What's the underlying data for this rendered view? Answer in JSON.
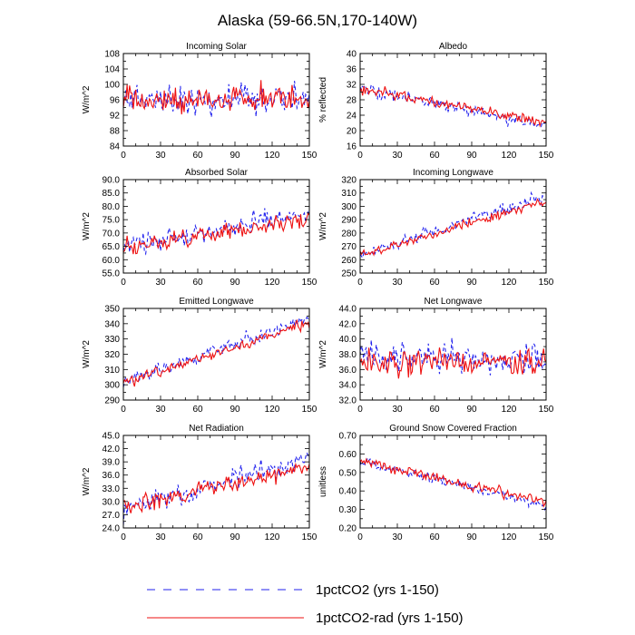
{
  "figure": {
    "title": "Alaska (59-66.5N,170-140W)"
  },
  "colors": {
    "series_1pctCO2": "#2222ee",
    "series_1pctCO2_rad": "#ee1111",
    "axis": "#000000"
  },
  "legend": [
    {
      "label": "1pctCO2 (yrs 1-150)",
      "color": "#2222ee",
      "style": "dashed"
    },
    {
      "label": "1pctCO2-rad (yrs 1-150)",
      "color": "#ee1111",
      "style": "solid"
    }
  ],
  "chart_data": [
    {
      "type": "line",
      "title": "Incoming Solar",
      "ylabel": "W/m^2",
      "xlim": [
        0,
        150
      ],
      "ylim": [
        84,
        108
      ],
      "xticks": [
        0,
        30,
        60,
        90,
        120,
        150
      ],
      "yticks": [
        84,
        88,
        92,
        96,
        100,
        104,
        108
      ],
      "ytick_labels": [
        "84",
        "88",
        "92",
        "96",
        "100",
        "104",
        "108"
      ],
      "series": [
        {
          "key": "1pctCO2",
          "mean_start": 96,
          "mean_end": 96,
          "noise": 3.2,
          "seed": 11
        },
        {
          "key": "1pctCO2-rad",
          "mean_start": 96,
          "mean_end": 96,
          "noise": 3.0,
          "seed": 12
        }
      ]
    },
    {
      "type": "line",
      "title": "Albedo",
      "ylabel": "% reflected",
      "xlim": [
        0,
        150
      ],
      "ylim": [
        16,
        40
      ],
      "xticks": [
        0,
        30,
        60,
        90,
        120,
        150
      ],
      "yticks": [
        16,
        20,
        24,
        28,
        32,
        36,
        40
      ],
      "ytick_labels": [
        "16",
        "20",
        "24",
        "28",
        "32",
        "36",
        "40"
      ],
      "series": [
        {
          "key": "1pctCO2",
          "mean_start": 31,
          "mean_end": 21,
          "noise": 1.3,
          "seed": 21
        },
        {
          "key": "1pctCO2-rad",
          "mean_start": 31,
          "mean_end": 22,
          "noise": 1.1,
          "seed": 22
        }
      ]
    },
    {
      "type": "line",
      "title": "Absorbed Solar",
      "ylabel": "W/m^2",
      "xlim": [
        0,
        150
      ],
      "ylim": [
        55,
        90
      ],
      "xticks": [
        0,
        30,
        60,
        90,
        120,
        150
      ],
      "yticks": [
        55,
        60,
        65,
        70,
        75,
        80,
        85,
        90
      ],
      "ytick_labels": [
        "55.0",
        "60.0",
        "65.0",
        "70.0",
        "75.0",
        "80.0",
        "85.0",
        "90.0"
      ],
      "series": [
        {
          "key": "1pctCO2",
          "mean_start": 65,
          "mean_end": 77,
          "noise": 3.0,
          "seed": 31
        },
        {
          "key": "1pctCO2-rad",
          "mean_start": 65,
          "mean_end": 75,
          "noise": 2.6,
          "seed": 32
        }
      ]
    },
    {
      "type": "line",
      "title": "Incoming Longwave",
      "ylabel": "W/m^2",
      "xlim": [
        0,
        150
      ],
      "ylim": [
        250,
        320
      ],
      "xticks": [
        0,
        30,
        60,
        90,
        120,
        150
      ],
      "yticks": [
        250,
        260,
        270,
        280,
        290,
        300,
        310,
        320
      ],
      "ytick_labels": [
        "250",
        "260",
        "270",
        "280",
        "290",
        "300",
        "310",
        "320"
      ],
      "series": [
        {
          "key": "1pctCO2",
          "mean_start": 263,
          "mean_end": 308,
          "noise": 3.5,
          "seed": 41
        },
        {
          "key": "1pctCO2-rad",
          "mean_start": 263,
          "mean_end": 304,
          "noise": 3.0,
          "seed": 42
        }
      ]
    },
    {
      "type": "line",
      "title": "Emitted Longwave",
      "ylabel": "W/m^2",
      "xlim": [
        0,
        150
      ],
      "ylim": [
        290,
        350
      ],
      "xticks": [
        0,
        30,
        60,
        90,
        120,
        150
      ],
      "yticks": [
        290,
        300,
        310,
        320,
        330,
        340,
        350
      ],
      "ytick_labels": [
        "290",
        "300",
        "310",
        "320",
        "330",
        "340",
        "350"
      ],
      "series": [
        {
          "key": "1pctCO2",
          "mean_start": 301,
          "mean_end": 344,
          "noise": 3.5,
          "seed": 51
        },
        {
          "key": "1pctCO2-rad",
          "mean_start": 301,
          "mean_end": 340,
          "noise": 3.0,
          "seed": 52
        }
      ]
    },
    {
      "type": "line",
      "title": "Net Longwave",
      "ylabel": "W/m^2",
      "xlim": [
        0,
        150
      ],
      "ylim": [
        32,
        44
      ],
      "xticks": [
        0,
        30,
        60,
        90,
        120,
        150
      ],
      "yticks": [
        32,
        34,
        36,
        38,
        40,
        42,
        44
      ],
      "ytick_labels": [
        "32.0",
        "34.0",
        "36.0",
        "38.0",
        "40.0",
        "42.0",
        "44.0"
      ],
      "series": [
        {
          "key": "1pctCO2",
          "mean_start": 37.5,
          "mean_end": 37.5,
          "noise": 1.6,
          "seed": 61
        },
        {
          "key": "1pctCO2-rad",
          "mean_start": 37,
          "mean_end": 36.8,
          "noise": 1.4,
          "seed": 62
        }
      ]
    },
    {
      "type": "line",
      "title": "Net Radiation",
      "ylabel": "W/m^2",
      "xlim": [
        0,
        150
      ],
      "ylim": [
        24,
        45
      ],
      "xticks": [
        0,
        30,
        60,
        90,
        120,
        150
      ],
      "yticks": [
        24,
        27,
        30,
        33,
        36,
        39,
        42,
        45
      ],
      "ytick_labels": [
        "24.0",
        "27.0",
        "30.0",
        "33.0",
        "36.0",
        "39.0",
        "42.0",
        "45.0"
      ],
      "series": [
        {
          "key": "1pctCO2",
          "mean_start": 28.5,
          "mean_end": 39.5,
          "noise": 2.0,
          "seed": 71
        },
        {
          "key": "1pctCO2-rad",
          "mean_start": 28.5,
          "mean_end": 38,
          "noise": 1.7,
          "seed": 72
        }
      ]
    },
    {
      "type": "line",
      "title": "Ground Snow Covered Fraction",
      "ylabel": "unitless",
      "xlim": [
        0,
        150
      ],
      "ylim": [
        0.2,
        0.7
      ],
      "xticks": [
        0,
        30,
        60,
        90,
        120,
        150
      ],
      "yticks": [
        0.2,
        0.3,
        0.4,
        0.5,
        0.6,
        0.7
      ],
      "ytick_labels": [
        "0.20",
        "0.30",
        "0.40",
        "0.50",
        "0.60",
        "0.70"
      ],
      "series": [
        {
          "key": "1pctCO2",
          "mean_start": 0.56,
          "mean_end": 0.32,
          "noise": 0.025,
          "seed": 81
        },
        {
          "key": "1pctCO2-rad",
          "mean_start": 0.56,
          "mean_end": 0.34,
          "noise": 0.022,
          "seed": 82
        }
      ]
    }
  ]
}
